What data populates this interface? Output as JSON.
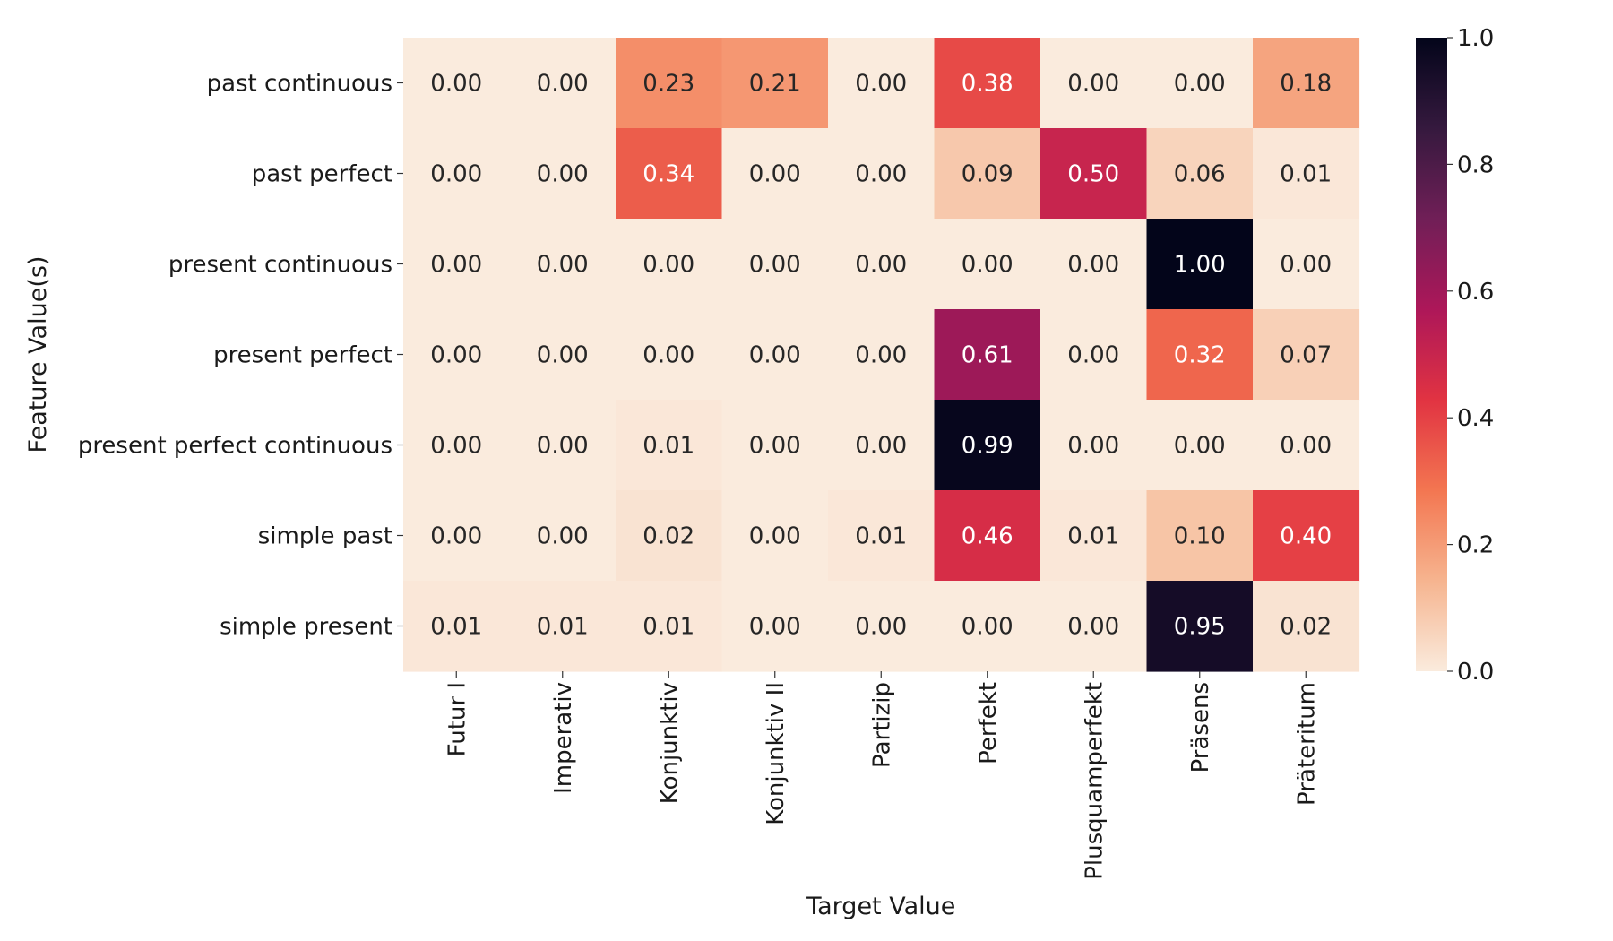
{
  "chart_data": {
    "type": "heatmap",
    "title": "",
    "xlabel": "Target Value",
    "ylabel": "Feature Value(s)",
    "x_categories": [
      "Futur I",
      "Imperativ",
      "Konjunktiv",
      "Konjunktiv II",
      "Partizip",
      "Perfekt",
      "Plusquamperfekt",
      "Präsens",
      "Präteritum"
    ],
    "y_categories": [
      "past continuous",
      "past perfect",
      "present continuous",
      "present perfect",
      "present perfect continuous",
      "simple past",
      "simple present"
    ],
    "values": [
      [
        0.0,
        0.0,
        0.23,
        0.21,
        0.0,
        0.38,
        0.0,
        0.0,
        0.18
      ],
      [
        0.0,
        0.0,
        0.34,
        0.0,
        0.0,
        0.09,
        0.5,
        0.06,
        0.01
      ],
      [
        0.0,
        0.0,
        0.0,
        0.0,
        0.0,
        0.0,
        0.0,
        1.0,
        0.0
      ],
      [
        0.0,
        0.0,
        0.0,
        0.0,
        0.0,
        0.61,
        0.0,
        0.32,
        0.07
      ],
      [
        0.0,
        0.0,
        0.01,
        0.0,
        0.0,
        0.99,
        0.0,
        0.0,
        0.0
      ],
      [
        0.0,
        0.0,
        0.02,
        0.0,
        0.01,
        0.46,
        0.01,
        0.1,
        0.4
      ],
      [
        0.01,
        0.01,
        0.01,
        0.0,
        0.0,
        0.0,
        0.0,
        0.95,
        0.02
      ]
    ],
    "value_format": "0.00",
    "colorbar": {
      "range": [
        0.0,
        1.0
      ],
      "ticks": [
        "0.0",
        "0.2",
        "0.4",
        "0.6",
        "0.8",
        "1.0"
      ],
      "colormap": "rocket_r",
      "stops": [
        "#faebdd",
        "#f6b48f",
        "#f37651",
        "#e13342",
        "#ad1759",
        "#701f57",
        "#35193e",
        "#03051a"
      ]
    }
  }
}
